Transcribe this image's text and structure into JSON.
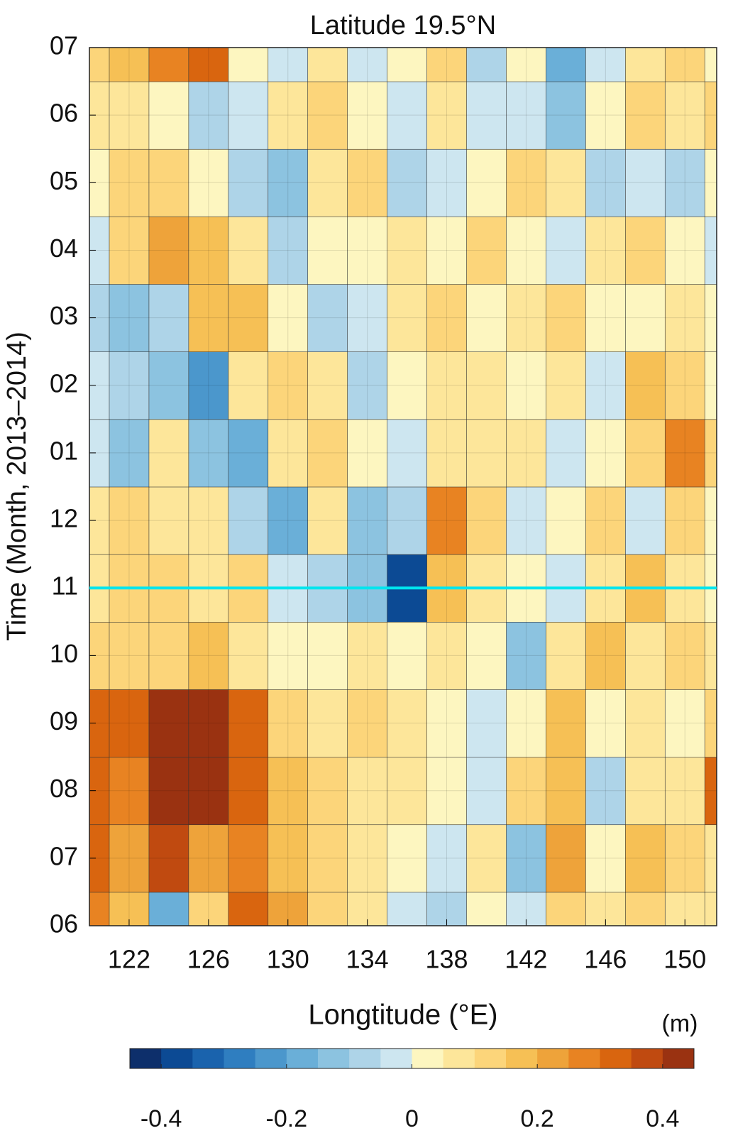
{
  "chart_data": {
    "type": "heatmap",
    "title": "Latitude 19.5°N",
    "xlabel": "Longtitude (°E)",
    "ylabel": "Time (Month, 2013–2014)",
    "x": [
      120,
      122,
      124,
      126,
      128,
      130,
      132,
      134,
      136,
      138,
      140,
      142,
      144,
      146,
      148,
      150,
      152
    ],
    "y": [
      0,
      1,
      2,
      3,
      4,
      5,
      6,
      7,
      8,
      9,
      10,
      11,
      12,
      13
    ],
    "values": [
      [
        0.25,
        0.15,
        -0.2,
        0.1,
        0.3,
        0.2,
        0.1,
        0.05,
        -0.05,
        -0.1,
        0.0,
        -0.05,
        0.1,
        0.05,
        0.1,
        0.05,
        0.05
      ],
      [
        0.3,
        0.2,
        0.35,
        0.2,
        0.25,
        0.15,
        0.1,
        0.05,
        0.0,
        -0.05,
        0.05,
        -0.15,
        0.2,
        0.0,
        0.15,
        0.1,
        0.05
      ],
      [
        0.3,
        0.25,
        0.45,
        0.4,
        0.3,
        0.15,
        0.1,
        0.05,
        0.05,
        0.0,
        -0.05,
        0.1,
        0.15,
        -0.1,
        0.05,
        0.05,
        0.3
      ],
      [
        0.3,
        0.3,
        0.4,
        0.4,
        0.3,
        0.1,
        0.05,
        0.1,
        0.05,
        0.0,
        -0.05,
        0.0,
        0.15,
        0.0,
        0.05,
        0.0,
        0.1
      ],
      [
        0.1,
        0.1,
        0.1,
        0.15,
        0.05,
        0.0,
        0.0,
        0.05,
        0.0,
        0.05,
        0.0,
        -0.15,
        0.05,
        0.15,
        0.05,
        0.1,
        0.05
      ],
      [
        0.05,
        0.1,
        0.1,
        0.05,
        0.1,
        -0.05,
        -0.1,
        -0.15,
        -0.4,
        0.15,
        0.05,
        0.0,
        -0.05,
        0.05,
        0.15,
        0.05,
        0.0
      ],
      [
        0.05,
        0.1,
        0.05,
        0.05,
        -0.1,
        -0.2,
        0.05,
        -0.15,
        -0.1,
        0.25,
        0.1,
        -0.05,
        0.0,
        0.1,
        -0.05,
        0.1,
        0.0
      ],
      [
        -0.05,
        -0.15,
        0.05,
        -0.15,
        -0.2,
        0.05,
        0.1,
        0.0,
        -0.05,
        0.05,
        0.05,
        0.05,
        -0.05,
        0.0,
        0.1,
        0.25,
        0.1
      ],
      [
        -0.05,
        -0.1,
        -0.15,
        -0.25,
        0.05,
        0.1,
        0.05,
        -0.1,
        0.0,
        0.05,
        0.05,
        0.0,
        0.05,
        -0.05,
        0.15,
        0.1,
        0.0
      ],
      [
        -0.1,
        -0.15,
        -0.1,
        0.15,
        0.15,
        0.0,
        -0.1,
        -0.05,
        0.05,
        0.1,
        0.0,
        0.05,
        0.1,
        0.0,
        0.0,
        0.05,
        0.0
      ],
      [
        -0.05,
        0.1,
        0.2,
        0.15,
        0.05,
        -0.1,
        0.0,
        0.0,
        0.05,
        0.0,
        0.1,
        0.0,
        -0.05,
        0.05,
        0.1,
        0.0,
        -0.05
      ],
      [
        0.0,
        0.1,
        0.1,
        0.0,
        -0.1,
        -0.15,
        0.05,
        0.1,
        -0.1,
        -0.05,
        0.0,
        0.1,
        0.05,
        -0.1,
        -0.05,
        -0.1,
        0.0
      ],
      [
        0.05,
        0.05,
        0.0,
        -0.1,
        -0.05,
        0.05,
        0.1,
        0.0,
        -0.05,
        0.05,
        -0.05,
        -0.05,
        -0.15,
        0.0,
        0.1,
        0.05,
        0.1
      ],
      [
        0.1,
        0.15,
        0.25,
        0.3,
        0.0,
        -0.05,
        0.05,
        -0.05,
        0.0,
        0.1,
        -0.1,
        0.0,
        -0.2,
        -0.05,
        0.05,
        0.1,
        0.0
      ]
    ],
    "xlim": [
      120,
      151.6
    ],
    "ylim": [
      0,
      13
    ],
    "xticks": [
      122,
      126,
      130,
      134,
      138,
      142,
      146,
      150
    ],
    "yticks": [
      {
        "value": 0,
        "label": "06"
      },
      {
        "value": 1,
        "label": "07"
      },
      {
        "value": 2,
        "label": "08"
      },
      {
        "value": 3,
        "label": "09"
      },
      {
        "value": 4,
        "label": "10"
      },
      {
        "value": 5,
        "label": "11"
      },
      {
        "value": 6,
        "label": "12"
      },
      {
        "value": 7,
        "label": "01"
      },
      {
        "value": 8,
        "label": "02"
      },
      {
        "value": 9,
        "label": "03"
      },
      {
        "value": 10,
        "label": "04"
      },
      {
        "value": 11,
        "label": "05"
      },
      {
        "value": 12,
        "label": "06"
      },
      {
        "value": 13,
        "label": "07"
      }
    ],
    "grid": true,
    "hline": {
      "value": 5,
      "color": "#00e5ee"
    },
    "colorbar": {
      "label": "(m)",
      "levels": [
        -0.45,
        -0.4,
        -0.35,
        -0.3,
        -0.25,
        -0.2,
        -0.15,
        -0.1,
        -0.05,
        0,
        0.05,
        0.1,
        0.15,
        0.2,
        0.25,
        0.3,
        0.35,
        0.4,
        0.45
      ],
      "colors": [
        "#0d2f6b",
        "#0c4a94",
        "#1a63ad",
        "#2f7ec0",
        "#4b97cc",
        "#6aafd8",
        "#8cc3e0",
        "#aed4e8",
        "#cde6f0",
        "#fdf6c0",
        "#fde69a",
        "#fcd57a",
        "#f6c055",
        "#eea33a",
        "#e88322",
        "#d9650f",
        "#c04a10",
        "#9a3211"
      ],
      "ticks": [
        -0.4,
        -0.2,
        0,
        0.2,
        0.4
      ]
    }
  }
}
